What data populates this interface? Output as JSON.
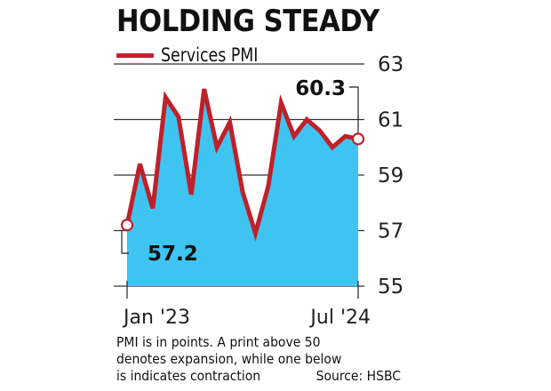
{
  "title": "HOLDING STEADY",
  "chart_data": {
    "type": "area",
    "series": [
      {
        "name": "Services PMI",
        "values": [
          57.2,
          59.4,
          57.8,
          61.8,
          61.1,
          58.3,
          62.1,
          60.0,
          60.9,
          58.4,
          56.9,
          58.6,
          61.6,
          60.4,
          61.0,
          60.6,
          60.0,
          60.4,
          60.3
        ]
      }
    ],
    "x_start_label": "Jan '23",
    "x_end_label": "Jul '24",
    "ylim": [
      55,
      63
    ],
    "yticks": [
      63,
      61,
      59,
      57,
      55
    ],
    "annotations": [
      {
        "text": "57.2",
        "point": "first"
      },
      {
        "text": "60.3",
        "point": "last"
      }
    ],
    "colors": {
      "line": "#c0202a",
      "fill": "#3fc4f1",
      "grid": "#333333"
    },
    "grid": true,
    "legend": "top-left"
  },
  "footnote": {
    "line1": "PMI is in points. A print above 50",
    "line2": "denotes expansion, while one below",
    "line3": "is indicates contraction",
    "source": "Source: HSBC"
  }
}
